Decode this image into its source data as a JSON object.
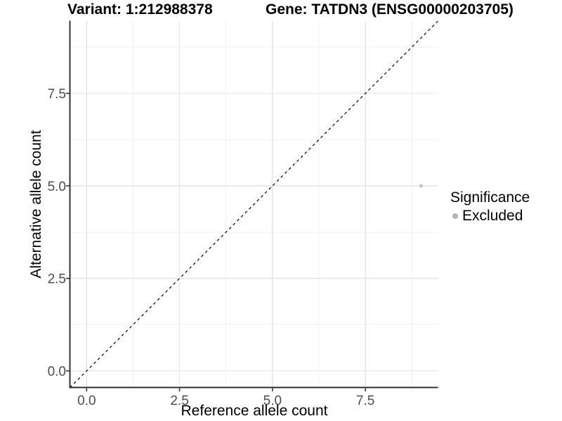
{
  "header": {
    "title_left": "Variant: 1:212988378",
    "title_right": "Gene: TATDN3 (ENSG00000203705)"
  },
  "chart_data": {
    "type": "scatter",
    "title_left": "Variant: 1:212988378",
    "title_right": "Gene: TATDN3 (ENSG00000203705)",
    "xlabel": "Reference allele count",
    "ylabel": "Alternative allele count",
    "xlim": [
      -0.45,
      9.45
    ],
    "ylim": [
      -0.45,
      9.45
    ],
    "major_breaks": [
      0,
      2.5,
      5,
      7.5
    ],
    "minor_breaks": [
      1.25,
      3.75,
      6.25,
      8.75
    ],
    "x_tick_labels": [
      "0.0",
      "2.5",
      "5.0",
      "7.5"
    ],
    "y_tick_labels": [
      "0.0",
      "2.5",
      "5.0",
      "7.5"
    ],
    "grid": "major+minor",
    "legend_position": "right",
    "points": [
      {
        "x": 9,
        "y": 5,
        "significance": "Excluded"
      }
    ],
    "reference_line": {
      "kind": "identity y=x",
      "from": [
        -0.45,
        -0.45
      ],
      "to": [
        9.45,
        9.45
      ],
      "style": "dashed"
    },
    "legend": {
      "title": "Significance",
      "entries": [
        {
          "label": "Excluded"
        }
      ]
    }
  },
  "colors": {
    "point": "#c4c4c4",
    "legend_key": "#b3b3b3",
    "grid_major": "#e4e4e4",
    "grid_minor": "#f1f1f1",
    "axis_line": "#333333",
    "tick_mark": "#333333",
    "tick_label": "#4d4d4d",
    "reference_line": "#000000",
    "background": "#ffffff"
  }
}
